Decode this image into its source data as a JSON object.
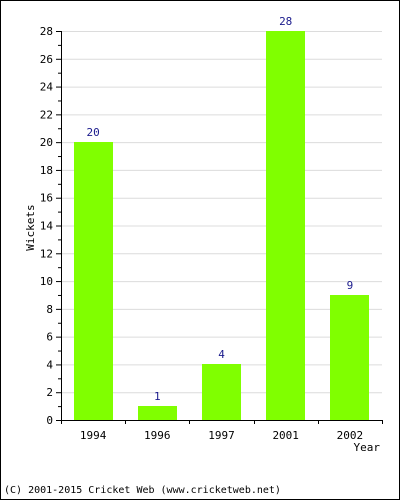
{
  "footer": {
    "copyright": "(C) 2001-2015 Cricket Web (www.cricketweb.net)"
  },
  "chart_data": {
    "type": "bar",
    "categories": [
      "1994",
      "1996",
      "1997",
      "2001",
      "2002"
    ],
    "values": [
      20,
      1,
      4,
      28,
      9
    ],
    "data_labels": [
      "20",
      "1",
      "4",
      "28",
      "9"
    ],
    "title": "",
    "xlabel": "Year",
    "ylabel": "Wickets",
    "ylim": [
      0,
      28
    ],
    "yticks": [
      0,
      2,
      4,
      6,
      8,
      10,
      12,
      14,
      16,
      18,
      20,
      22,
      24,
      26,
      28
    ],
    "grid": true,
    "bar_color": "#80ff00",
    "label_color": "#1a1a8c"
  }
}
